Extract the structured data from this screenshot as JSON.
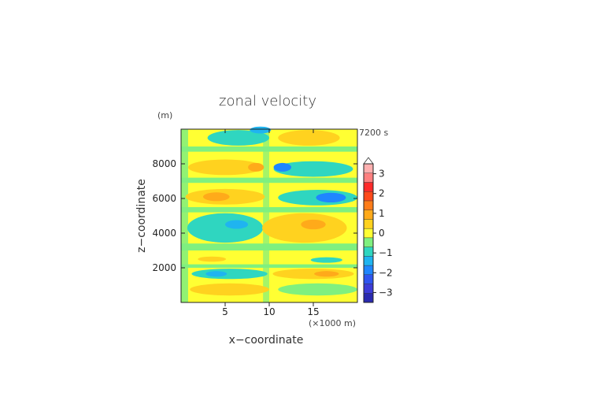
{
  "chart_data": {
    "type": "heatmap",
    "title": "zonal velocity",
    "xlabel": "x−coordinate",
    "ylabel": "z−coordinate",
    "x_units": "(×1000 m)",
    "y_units": "(m)",
    "time_label": "7200 s",
    "xlim": [
      0,
      20
    ],
    "ylim": [
      0,
      10000
    ],
    "x_ticks": [
      5,
      10,
      15
    ],
    "x_tick_labels": [
      "5",
      "10",
      "15"
    ],
    "y_ticks": [
      2000,
      4000,
      6000,
      8000
    ],
    "y_tick_labels": [
      "2000",
      "4000",
      "6000",
      "8000"
    ],
    "colorbar": {
      "levels": [
        -3.5,
        -3,
        -2.5,
        -2,
        -1.5,
        -1,
        -0.5,
        0,
        0.5,
        1,
        1.5,
        2,
        2.5,
        3,
        3.5
      ],
      "colors": [
        "#2a2ab0",
        "#3c3cd8",
        "#2f55f0",
        "#1f86ff",
        "#1fb4f0",
        "#2fd6c0",
        "#7ff07f",
        "#ffff33",
        "#ffd21f",
        "#ffaa1a",
        "#ff7d1a",
        "#ff4a1a",
        "#ff2a2a",
        "#ff8080",
        "#ffb0b0"
      ],
      "tick_values": [
        -3,
        -2,
        -1,
        0,
        1,
        2,
        3
      ],
      "tick_labels": [
        "−3",
        "−2",
        "−1",
        "0",
        "1",
        "2",
        "3"
      ]
    },
    "features": [
      {
        "x": 6.5,
        "z": 9500,
        "rx": 3.5,
        "rz": 450,
        "value": -0.7
      },
      {
        "x": 9.0,
        "z": 9950,
        "rx": 1.2,
        "rz": 200,
        "value": -1.2
      },
      {
        "x": 14.5,
        "z": 9500,
        "rx": 3.5,
        "rz": 450,
        "value": 0.7
      },
      {
        "x": 5.0,
        "z": 7800,
        "rx": 4.2,
        "rz": 450,
        "value": 0.8
      },
      {
        "x": 8.5,
        "z": 7800,
        "rx": 0.9,
        "rz": 250,
        "value": 1.2
      },
      {
        "x": 15.0,
        "z": 7700,
        "rx": 4.5,
        "rz": 450,
        "value": -0.8
      },
      {
        "x": 11.5,
        "z": 7800,
        "rx": 1.0,
        "rz": 250,
        "value": -1.6
      },
      {
        "x": 5.0,
        "z": 6100,
        "rx": 4.5,
        "rz": 450,
        "value": 0.8
      },
      {
        "x": 4.0,
        "z": 6100,
        "rx": 1.5,
        "rz": 250,
        "value": 1.2
      },
      {
        "x": 15.5,
        "z": 6050,
        "rx": 4.5,
        "rz": 450,
        "value": -0.8
      },
      {
        "x": 17.0,
        "z": 6050,
        "rx": 1.7,
        "rz": 280,
        "value": -1.6
      },
      {
        "x": 5.0,
        "z": 4300,
        "rx": 4.3,
        "rz": 850,
        "value": -0.8
      },
      {
        "x": 6.3,
        "z": 4500,
        "rx": 1.3,
        "rz": 250,
        "value": -1.5
      },
      {
        "x": 14.0,
        "z": 4300,
        "rx": 4.8,
        "rz": 850,
        "value": 0.8
      },
      {
        "x": 15.0,
        "z": 4500,
        "rx": 1.4,
        "rz": 280,
        "value": 1.2
      },
      {
        "x": 3.5,
        "z": 2500,
        "rx": 1.6,
        "rz": 150,
        "value": 0.8
      },
      {
        "x": 16.5,
        "z": 2450,
        "rx": 1.8,
        "rz": 160,
        "value": -0.8
      },
      {
        "x": 5.5,
        "z": 1650,
        "rx": 4.3,
        "rz": 300,
        "value": -0.8
      },
      {
        "x": 4.0,
        "z": 1650,
        "rx": 1.2,
        "rz": 160,
        "value": -1.5
      },
      {
        "x": 15.0,
        "z": 1650,
        "rx": 4.6,
        "rz": 300,
        "value": 0.8
      },
      {
        "x": 16.5,
        "z": 1650,
        "rx": 1.4,
        "rz": 160,
        "value": 1.2
      },
      {
        "x": 5.5,
        "z": 750,
        "rx": 4.5,
        "rz": 350,
        "value": 0.8
      },
      {
        "x": 15.5,
        "z": 750,
        "rx": 4.5,
        "rz": 350,
        "value": -0.3
      }
    ]
  }
}
